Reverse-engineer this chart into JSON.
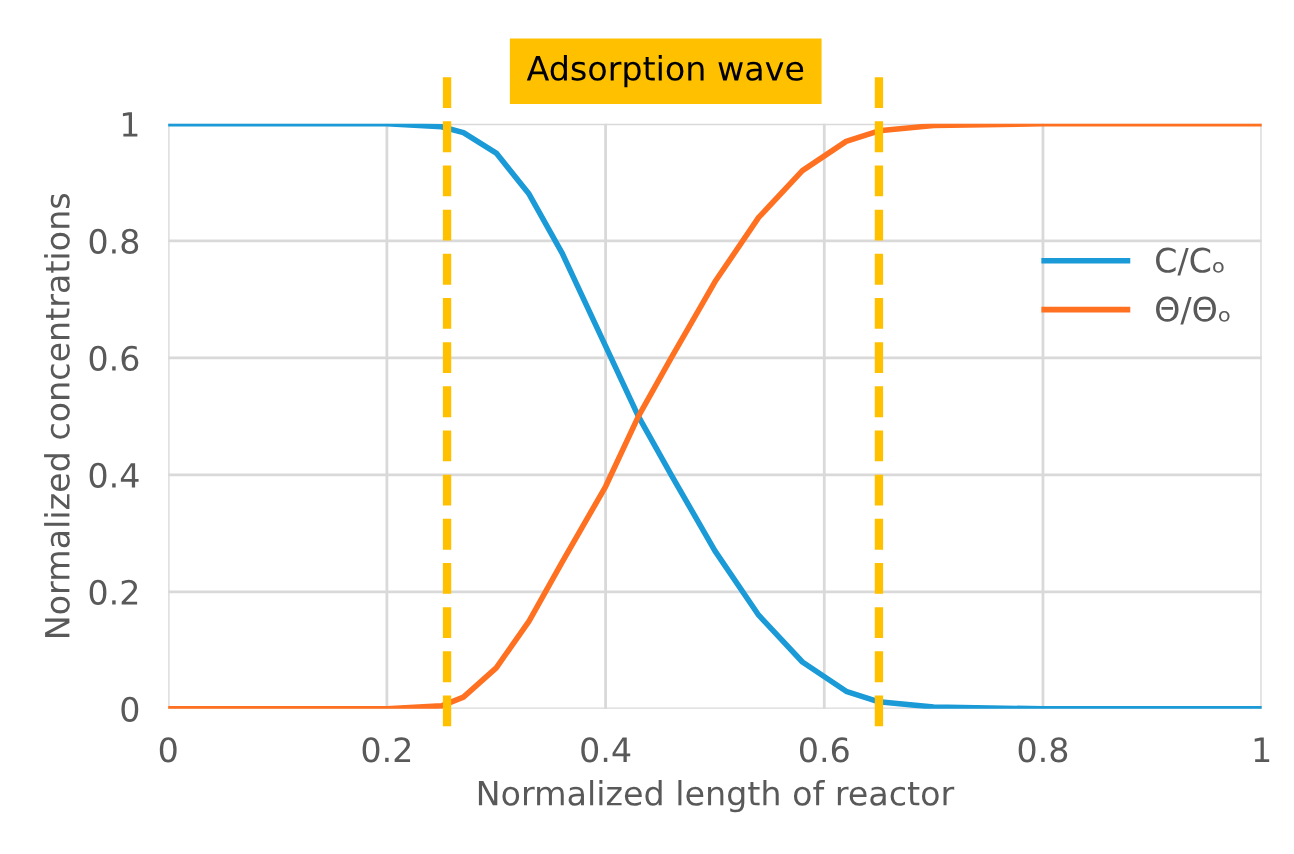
{
  "chart_data": {
    "type": "line",
    "xlabel": "Normalized length of reactor",
    "ylabel": "Normalized concentrations",
    "x": [
      0,
      0.1,
      0.2,
      0.25,
      0.27,
      0.3,
      0.33,
      0.36,
      0.4,
      0.43,
      0.46,
      0.5,
      0.54,
      0.58,
      0.62,
      0.65,
      0.7,
      0.8,
      1
    ],
    "series": [
      {
        "name": "C/Cₒ",
        "color": "#1a9ad6",
        "values": [
          1,
          1,
          1,
          0.995,
          0.985,
          0.95,
          0.88,
          0.78,
          0.62,
          0.5,
          0.4,
          0.27,
          0.16,
          0.08,
          0.03,
          0.012,
          0.003,
          0,
          0
        ]
      },
      {
        "name": "Θ/Θₒ",
        "color": "#ff7021",
        "values": [
          0,
          0,
          0,
          0.005,
          0.02,
          0.07,
          0.15,
          0.25,
          0.38,
          0.5,
          0.6,
          0.73,
          0.84,
          0.92,
          0.97,
          0.988,
          0.997,
          1,
          1
        ]
      }
    ],
    "xlim": [
      0,
      1
    ],
    "xticks": [
      0,
      0.2,
      0.4,
      0.6,
      0.8,
      1
    ],
    "ylim": [
      0,
      1
    ],
    "yticks": [
      0,
      0.2,
      0.4,
      0.6,
      0.8,
      1
    ],
    "ref_lines": [
      {
        "axis": "x",
        "value": 0.255,
        "color": "#ffc000",
        "line_style": "dashed"
      },
      {
        "axis": "x",
        "value": 0.65,
        "color": "#ffc000",
        "line_style": "dashed"
      }
    ],
    "annotations": [
      "Adsorption wave"
    ],
    "grid": true,
    "legend": "right",
    "marker": "none",
    "line_style": "solid"
  }
}
